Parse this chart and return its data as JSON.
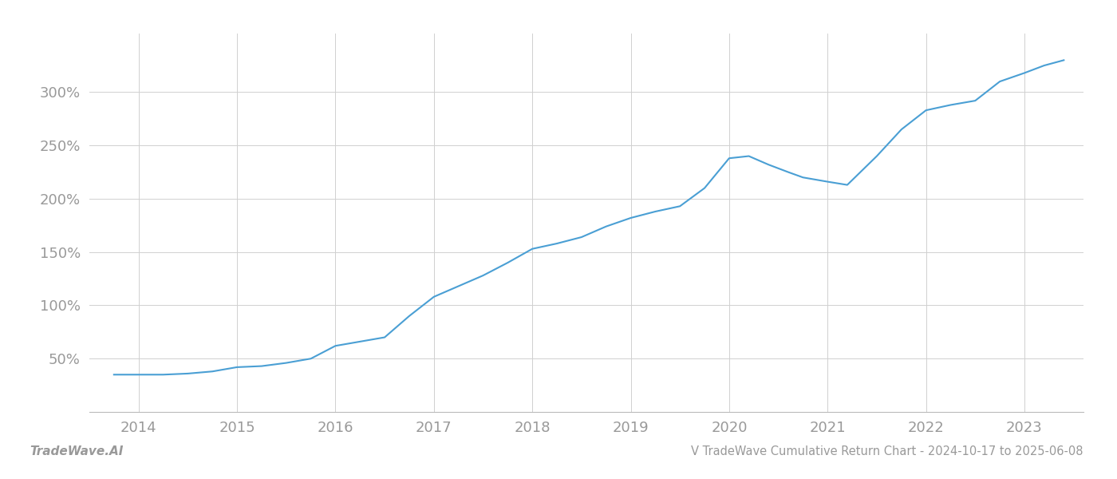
{
  "title": "V TradeWave Cumulative Return Chart - 2024-10-17 to 2025-06-08",
  "watermark": "TradeWave.AI",
  "line_color": "#4a9fd4",
  "background_color": "#ffffff",
  "grid_color": "#d0d0d0",
  "tick_label_color": "#999999",
  "x_years": [
    2014,
    2015,
    2016,
    2017,
    2018,
    2019,
    2020,
    2021,
    2022,
    2023
  ],
  "x_values": [
    2013.75,
    2014.0,
    2014.25,
    2014.5,
    2014.75,
    2015.0,
    2015.25,
    2015.5,
    2015.75,
    2016.0,
    2016.25,
    2016.5,
    2016.75,
    2017.0,
    2017.25,
    2017.5,
    2017.75,
    2018.0,
    2018.25,
    2018.5,
    2018.75,
    2019.0,
    2019.25,
    2019.5,
    2019.75,
    2020.0,
    2020.2,
    2020.4,
    2020.6,
    2020.75,
    2021.0,
    2021.2,
    2021.5,
    2021.75,
    2022.0,
    2022.25,
    2022.5,
    2022.75,
    2023.0,
    2023.2,
    2023.4
  ],
  "y_values": [
    35,
    35,
    35,
    36,
    38,
    42,
    43,
    46,
    50,
    62,
    66,
    70,
    90,
    108,
    118,
    128,
    140,
    153,
    158,
    164,
    174,
    182,
    188,
    193,
    210,
    238,
    240,
    232,
    225,
    220,
    216,
    213,
    240,
    265,
    283,
    288,
    292,
    310,
    318,
    325,
    330
  ],
  "yticks": [
    50,
    100,
    150,
    200,
    250,
    300
  ],
  "ylim": [
    0,
    355
  ],
  "xlim": [
    2013.5,
    2023.6
  ],
  "linewidth": 1.5,
  "title_fontsize": 10.5,
  "tick_fontsize": 13,
  "watermark_fontsize": 11
}
